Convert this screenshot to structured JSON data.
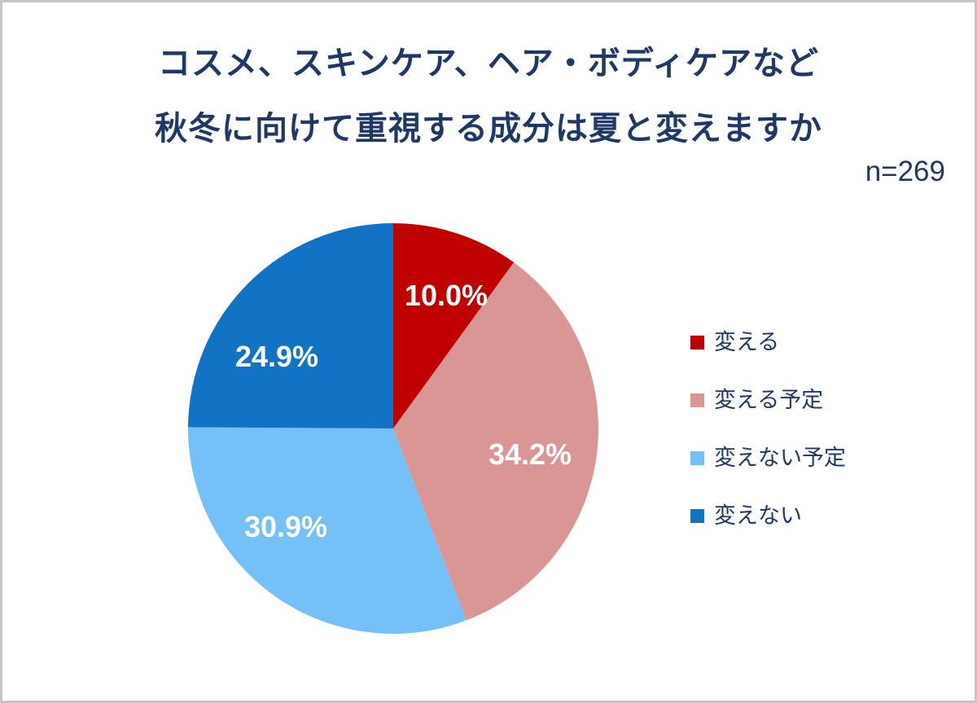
{
  "page": {
    "title_line1": "コスメ、スキンケア、ヘア・ボディケアなど",
    "title_line2": "秋冬に向けて重視する成分は夏と変えますか",
    "sample_size": "n=269"
  },
  "colors": {
    "navy_text": "#1F3864",
    "frame_border": "#C5C5C5",
    "slice_label_text": "#FFFFFF",
    "background": "#FFFFFF"
  },
  "chart_data": {
    "type": "pie",
    "title": "コスメ、スキンケア、ヘア・ボディケアなど 秋冬に向けて重視する成分は夏と変えますか",
    "sample_size_label": "n=269",
    "sample_size": 269,
    "start_angle_deg": 0,
    "direction": "clockwise",
    "legend_position": "right",
    "slices": [
      {
        "label": "変える",
        "value": 10.0,
        "display": "10.0%",
        "color": "#C00000"
      },
      {
        "label": "変える予定",
        "value": 34.2,
        "display": "34.2%",
        "color": "#D99694"
      },
      {
        "label": "変えない予定",
        "value": 30.9,
        "display": "30.9%",
        "color": "#76C0F8"
      },
      {
        "label": "変えない",
        "value": 24.9,
        "display": "24.9%",
        "color": "#1272C4"
      }
    ]
  }
}
